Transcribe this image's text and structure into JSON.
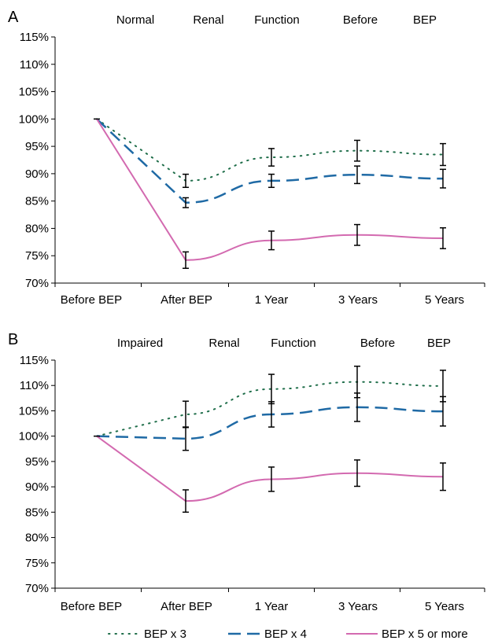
{
  "chart_data": [
    {
      "type": "line",
      "panel_label": "A",
      "title_words": [
        "Normal",
        "Renal",
        "Function",
        "Before",
        "BEP"
      ],
      "categories": [
        "Before BEP",
        "After BEP",
        "1 Year",
        "3 Years",
        "5 Years"
      ],
      "y_ticks": [
        "115%",
        "110%",
        "105%",
        "100%",
        "95%",
        "90%",
        "85%",
        "80%",
        "75%",
        "70%"
      ],
      "ylim": [
        70,
        115
      ],
      "y_unit": "%",
      "grid": false,
      "series": [
        {
          "name": "BEP x 3",
          "values": [
            100,
            88.7,
            93.0,
            94.2,
            93.5
          ],
          "err": [
            0,
            1.2,
            1.6,
            1.9,
            2.0
          ]
        },
        {
          "name": "BEP x 4",
          "values": [
            100,
            84.7,
            88.7,
            89.8,
            89.1
          ],
          "err": [
            0,
            0.9,
            1.2,
            1.6,
            1.7
          ]
        },
        {
          "name": "BEP x 5 or more",
          "values": [
            100,
            74.2,
            77.8,
            78.8,
            78.2
          ],
          "err": [
            0,
            1.5,
            1.7,
            1.9,
            1.9
          ]
        }
      ]
    },
    {
      "type": "line",
      "panel_label": "B",
      "title_words": [
        "Impaired",
        "Renal",
        "Function",
        "Before",
        "BEP"
      ],
      "categories": [
        "Before BEP",
        "After BEP",
        "1 Year",
        "3 Years",
        "5 Years"
      ],
      "y_ticks": [
        "115%",
        "110%",
        "105%",
        "100%",
        "95%",
        "90%",
        "85%",
        "80%",
        "75%",
        "70%"
      ],
      "ylim": [
        70,
        115
      ],
      "y_unit": "%",
      "grid": false,
      "series": [
        {
          "name": "BEP x 3",
          "values": [
            100,
            104.3,
            109.3,
            110.7,
            109.9
          ],
          "err": [
            0,
            2.6,
            2.9,
            3.1,
            3.1
          ]
        },
        {
          "name": "BEP x 4",
          "values": [
            100,
            99.5,
            104.3,
            105.7,
            104.9
          ],
          "err": [
            0,
            2.3,
            2.5,
            2.8,
            2.9
          ]
        },
        {
          "name": "BEP x 5 or more",
          "values": [
            100,
            87.2,
            91.5,
            92.7,
            92.0
          ],
          "err": [
            0,
            2.2,
            2.4,
            2.6,
            2.7
          ]
        }
      ]
    }
  ],
  "legend": {
    "placement": "bottom",
    "items": [
      {
        "label": "BEP x 3",
        "color": "#1f6e4a",
        "style": "dotted"
      },
      {
        "label": "BEP x 4",
        "color": "#1f6aa5",
        "style": "dashed"
      },
      {
        "label": "BEP x 5 or more",
        "color": "#d36ab0",
        "style": "solid"
      }
    ]
  }
}
